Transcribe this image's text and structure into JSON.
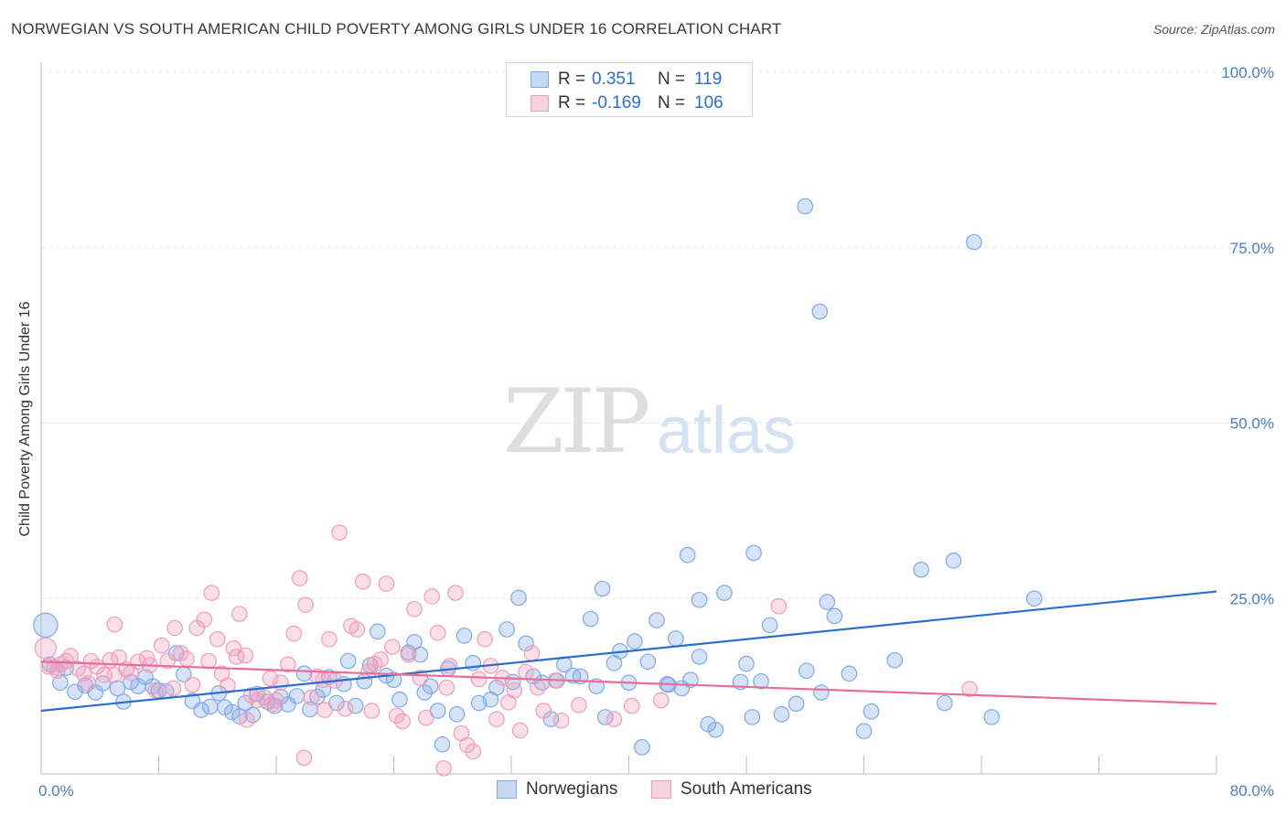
{
  "header": {
    "title": "NORWEGIAN VS SOUTH AMERICAN CHILD POVERTY AMONG GIRLS UNDER 16 CORRELATION CHART",
    "source": "Source: ZipAtlas.com"
  },
  "watermark": {
    "zip": "ZIP",
    "atlas": "atlas"
  },
  "stats": [
    {
      "r_label": "R =",
      "r_value": "0.351",
      "n_label": "N =",
      "n_value": "119",
      "color": "#7fa9e6"
    },
    {
      "r_label": "R =",
      "r_value": "-0.169",
      "n_label": "N =",
      "n_value": "106",
      "color": "#f19cba"
    }
  ],
  "legend": [
    {
      "label": "Norwegians",
      "color": "#7fa9e6"
    },
    {
      "label": "South Americans",
      "color": "#f19cba"
    }
  ],
  "chart_data": {
    "type": "scatter",
    "title": "NORWEGIAN VS SOUTH AMERICAN CHILD POVERTY AMONG GIRLS UNDER 16 CORRELATION CHART",
    "xlabel": "",
    "ylabel": "Child Poverty Among Girls Under 16",
    "xlim": [
      0,
      80
    ],
    "ylim": [
      0,
      100
    ],
    "x_tick_labels": [
      "0.0%",
      "80.0%"
    ],
    "y_ticks": [
      25,
      50,
      75,
      100
    ],
    "y_tick_labels": [
      "25.0%",
      "50.0%",
      "75.0%",
      "100.0%"
    ],
    "grid": true,
    "series": [
      {
        "name": "Norwegians",
        "color": "#7fa9e6",
        "line_color": "#2a6fd0",
        "trend": [
          [
            0,
            9.0
          ],
          [
            80,
            26.0
          ]
        ],
        "points": [
          [
            0.3,
            21.2,
            1.6
          ],
          [
            0.6,
            15.6,
            1
          ],
          [
            1.3,
            13.0,
            1
          ],
          [
            1.7,
            15.1,
            1
          ],
          [
            2.3,
            11.7,
            1
          ],
          [
            3.0,
            12.6,
            1
          ],
          [
            3.7,
            11.6,
            1
          ],
          [
            4.2,
            12.9,
            1
          ],
          [
            5.2,
            12.2,
            1
          ],
          [
            5.6,
            10.3,
            1
          ],
          [
            6.1,
            13.1,
            1
          ],
          [
            6.6,
            12.5,
            1
          ],
          [
            7.1,
            13.8,
            1
          ],
          [
            7.6,
            12.5,
            1
          ],
          [
            8.0,
            11.9,
            1
          ],
          [
            8.5,
            11.8,
            1
          ],
          [
            9.2,
            17.2,
            1
          ],
          [
            9.7,
            14.2,
            1
          ],
          [
            10.3,
            10.4,
            1
          ],
          [
            10.9,
            9.1,
            1
          ],
          [
            11.5,
            9.6,
            1
          ],
          [
            12.1,
            11.5,
            1
          ],
          [
            12.5,
            9.5,
            1
          ],
          [
            13.0,
            8.8,
            1
          ],
          [
            13.5,
            8.2,
            1
          ],
          [
            13.9,
            10.1,
            1
          ],
          [
            14.4,
            8.4,
            1
          ],
          [
            14.7,
            11.4,
            1
          ],
          [
            15.4,
            10.3,
            1
          ],
          [
            15.9,
            9.7,
            1
          ],
          [
            16.3,
            11.0,
            1
          ],
          [
            16.8,
            9.9,
            1
          ],
          [
            17.4,
            11.1,
            1
          ],
          [
            17.9,
            14.3,
            1
          ],
          [
            18.3,
            9.2,
            1
          ],
          [
            18.8,
            11.0,
            1
          ],
          [
            19.2,
            12.0,
            1
          ],
          [
            19.6,
            13.8,
            1
          ],
          [
            20.1,
            10.1,
            1
          ],
          [
            20.6,
            12.8,
            1
          ],
          [
            20.9,
            16.1,
            1
          ],
          [
            21.4,
            9.7,
            1
          ],
          [
            22.0,
            13.2,
            1
          ],
          [
            22.4,
            15.5,
            1
          ],
          [
            22.9,
            20.3,
            1
          ],
          [
            23.5,
            14.0,
            1
          ],
          [
            24.0,
            13.4,
            1
          ],
          [
            24.4,
            10.6,
            1
          ],
          [
            25.0,
            17.3,
            1
          ],
          [
            25.4,
            18.8,
            1
          ],
          [
            25.8,
            17.0,
            1
          ],
          [
            26.1,
            11.6,
            1
          ],
          [
            26.5,
            12.5,
            1
          ],
          [
            27.0,
            9.0,
            1
          ],
          [
            27.3,
            4.2,
            1
          ],
          [
            27.7,
            15.0,
            1
          ],
          [
            28.3,
            8.5,
            1
          ],
          [
            28.8,
            19.7,
            1
          ],
          [
            29.4,
            15.8,
            1
          ],
          [
            29.8,
            10.1,
            1
          ],
          [
            30.6,
            10.6,
            1
          ],
          [
            31.0,
            12.3,
            1
          ],
          [
            31.7,
            20.6,
            1
          ],
          [
            32.1,
            13.1,
            1
          ],
          [
            32.5,
            25.1,
            1
          ],
          [
            33.0,
            18.6,
            1
          ],
          [
            33.5,
            13.9,
            1
          ],
          [
            34.1,
            13.0,
            1
          ],
          [
            34.7,
            7.8,
            1
          ],
          [
            35.1,
            13.3,
            1
          ],
          [
            35.6,
            15.6,
            1
          ],
          [
            36.2,
            14.0,
            1
          ],
          [
            36.7,
            13.9,
            1
          ],
          [
            37.4,
            22.1,
            1
          ],
          [
            37.8,
            12.5,
            1
          ],
          [
            38.4,
            8.1,
            1
          ],
          [
            39.0,
            15.8,
            1
          ],
          [
            39.4,
            17.5,
            1
          ],
          [
            40.0,
            13.0,
            1
          ],
          [
            40.4,
            18.9,
            1
          ],
          [
            40.9,
            3.8,
            1
          ],
          [
            41.3,
            16.0,
            1
          ],
          [
            41.9,
            21.9,
            1
          ],
          [
            42.6,
            12.8,
            1
          ],
          [
            43.2,
            19.3,
            1
          ],
          [
            43.6,
            12.2,
            1
          ],
          [
            44.2,
            13.4,
            1
          ],
          [
            44.8,
            16.7,
            1
          ],
          [
            45.4,
            7.1,
            1
          ],
          [
            45.9,
            6.3,
            1
          ],
          [
            46.5,
            25.8,
            1
          ],
          [
            47.6,
            13.1,
            1
          ],
          [
            48.0,
            15.7,
            1
          ],
          [
            48.4,
            8.1,
            1
          ],
          [
            49.0,
            13.2,
            1
          ],
          [
            49.6,
            21.2,
            1
          ],
          [
            50.4,
            8.5,
            1
          ],
          [
            51.4,
            10.0,
            1
          ],
          [
            52.1,
            14.7,
            1
          ],
          [
            53.1,
            11.6,
            1
          ],
          [
            53.5,
            24.5,
            1
          ],
          [
            55.0,
            14.3,
            1
          ],
          [
            56.0,
            6.1,
            1
          ],
          [
            61.5,
            10.1,
            1
          ],
          [
            64.7,
            8.1,
            1
          ],
          [
            44.0,
            31.2,
            1
          ],
          [
            48.5,
            31.5,
            1
          ],
          [
            59.9,
            29.1,
            1
          ],
          [
            62.1,
            30.4,
            1
          ],
          [
            67.6,
            25.0,
            1
          ],
          [
            53.0,
            65.9,
            1
          ],
          [
            63.5,
            75.8,
            1
          ],
          [
            52.0,
            80.9,
            1
          ],
          [
            44.8,
            24.8,
            1
          ],
          [
            56.5,
            8.9,
            1
          ],
          [
            54.0,
            22.5,
            1
          ],
          [
            38.2,
            26.4,
            1
          ],
          [
            58.1,
            16.2,
            1
          ],
          [
            42.7,
            12.7,
            1
          ]
        ]
      },
      {
        "name": "South Americans",
        "color": "#f19cba",
        "line_color": "#e86d98",
        "trend": [
          [
            0,
            16.0
          ],
          [
            80,
            10.0
          ]
        ],
        "points": [
          [
            0.3,
            17.9,
            1.4
          ],
          [
            0.5,
            15.3,
            1
          ],
          [
            0.9,
            15.2,
            1
          ],
          [
            1.3,
            15.6,
            1
          ],
          [
            1.7,
            16.1,
            1
          ],
          [
            2.0,
            16.8,
            1
          ],
          [
            2.5,
            15.0,
            1
          ],
          [
            2.9,
            14.3,
            1
          ],
          [
            3.4,
            16.1,
            1
          ],
          [
            3.8,
            15.3,
            1
          ],
          [
            4.3,
            14.1,
            1
          ],
          [
            4.7,
            16.2,
            1
          ],
          [
            5.0,
            21.3,
            1
          ],
          [
            5.3,
            16.6,
            1
          ],
          [
            5.8,
            14.9,
            1
          ],
          [
            6.1,
            14.4,
            1
          ],
          [
            6.6,
            16.0,
            1
          ],
          [
            7.2,
            16.5,
            1
          ],
          [
            7.8,
            11.9,
            1
          ],
          [
            8.2,
            18.3,
            1
          ],
          [
            8.6,
            16.1,
            1
          ],
          [
            9.0,
            12.2,
            1
          ],
          [
            9.5,
            17.2,
            1
          ],
          [
            9.9,
            16.4,
            1
          ],
          [
            10.3,
            12.7,
            1
          ],
          [
            10.6,
            20.8,
            1
          ],
          [
            11.1,
            22.0,
            1
          ],
          [
            11.6,
            25.8,
            1
          ],
          [
            12.0,
            19.2,
            1
          ],
          [
            12.3,
            14.3,
            1
          ],
          [
            12.7,
            12.6,
            1
          ],
          [
            13.1,
            17.9,
            1
          ],
          [
            13.5,
            22.8,
            1
          ],
          [
            13.9,
            16.9,
            1
          ],
          [
            14.3,
            11.2,
            1
          ],
          [
            14.7,
            10.5,
            1
          ],
          [
            15.2,
            10.9,
            1
          ],
          [
            15.6,
            13.6,
            1
          ],
          [
            16.0,
            10.5,
            1
          ],
          [
            16.3,
            13.0,
            1
          ],
          [
            16.8,
            15.6,
            1
          ],
          [
            17.2,
            20.0,
            1
          ],
          [
            17.6,
            27.9,
            1
          ],
          [
            18.0,
            24.1,
            1
          ],
          [
            18.4,
            10.9,
            1
          ],
          [
            18.8,
            13.9,
            1
          ],
          [
            19.2,
            13.4,
            1
          ],
          [
            19.6,
            19.2,
            1
          ],
          [
            20.0,
            13.3,
            1
          ],
          [
            20.3,
            34.4,
            1
          ],
          [
            20.7,
            9.3,
            1
          ],
          [
            21.1,
            21.1,
            1
          ],
          [
            21.5,
            20.6,
            1
          ],
          [
            21.9,
            27.4,
            1
          ],
          [
            22.3,
            14.6,
            1
          ],
          [
            22.7,
            15.7,
            1
          ],
          [
            23.1,
            16.3,
            1
          ],
          [
            23.5,
            27.1,
            1
          ],
          [
            23.9,
            18.1,
            1
          ],
          [
            24.2,
            8.3,
            1
          ],
          [
            24.6,
            7.5,
            1
          ],
          [
            25.0,
            17.0,
            1
          ],
          [
            25.4,
            23.5,
            1
          ],
          [
            25.8,
            13.7,
            1
          ],
          [
            26.2,
            8.0,
            1
          ],
          [
            26.6,
            25.3,
            1
          ],
          [
            27.0,
            20.1,
            1
          ],
          [
            27.4,
            0.8,
            1
          ],
          [
            27.8,
            15.4,
            1
          ],
          [
            28.2,
            25.8,
            1
          ],
          [
            28.6,
            5.8,
            1
          ],
          [
            29.0,
            4.1,
            1
          ],
          [
            29.4,
            3.2,
            1
          ],
          [
            29.8,
            13.5,
            1
          ],
          [
            30.2,
            19.2,
            1
          ],
          [
            30.6,
            15.4,
            1
          ],
          [
            31.0,
            7.8,
            1
          ],
          [
            31.4,
            13.7,
            1
          ],
          [
            31.8,
            10.2,
            1
          ],
          [
            32.2,
            11.9,
            1
          ],
          [
            32.6,
            6.2,
            1
          ],
          [
            33.0,
            14.5,
            1
          ],
          [
            33.4,
            17.2,
            1
          ],
          [
            33.8,
            12.3,
            1
          ],
          [
            34.2,
            9.0,
            1
          ],
          [
            35.0,
            13.3,
            1
          ],
          [
            35.4,
            7.6,
            1
          ],
          [
            36.6,
            9.8,
            1
          ],
          [
            39.0,
            7.8,
            1
          ],
          [
            40.2,
            9.7,
            1
          ],
          [
            42.2,
            10.5,
            1
          ],
          [
            50.2,
            23.9,
            1
          ],
          [
            63.2,
            12.1,
            1
          ],
          [
            17.9,
            2.3,
            1
          ],
          [
            19.3,
            9.1,
            1
          ],
          [
            22.5,
            9.0,
            1
          ],
          [
            14.0,
            7.7,
            1
          ],
          [
            7.4,
            15.5,
            1
          ],
          [
            9.1,
            20.8,
            1
          ],
          [
            11.4,
            16.1,
            1
          ],
          [
            13.3,
            16.7,
            1
          ],
          [
            15.7,
            9.9,
            1
          ],
          [
            5.0,
            14.1,
            1
          ],
          [
            3.2,
            12.9,
            1
          ],
          [
            1.1,
            14.7,
            1
          ],
          [
            27.6,
            12.3,
            1
          ]
        ]
      }
    ]
  }
}
